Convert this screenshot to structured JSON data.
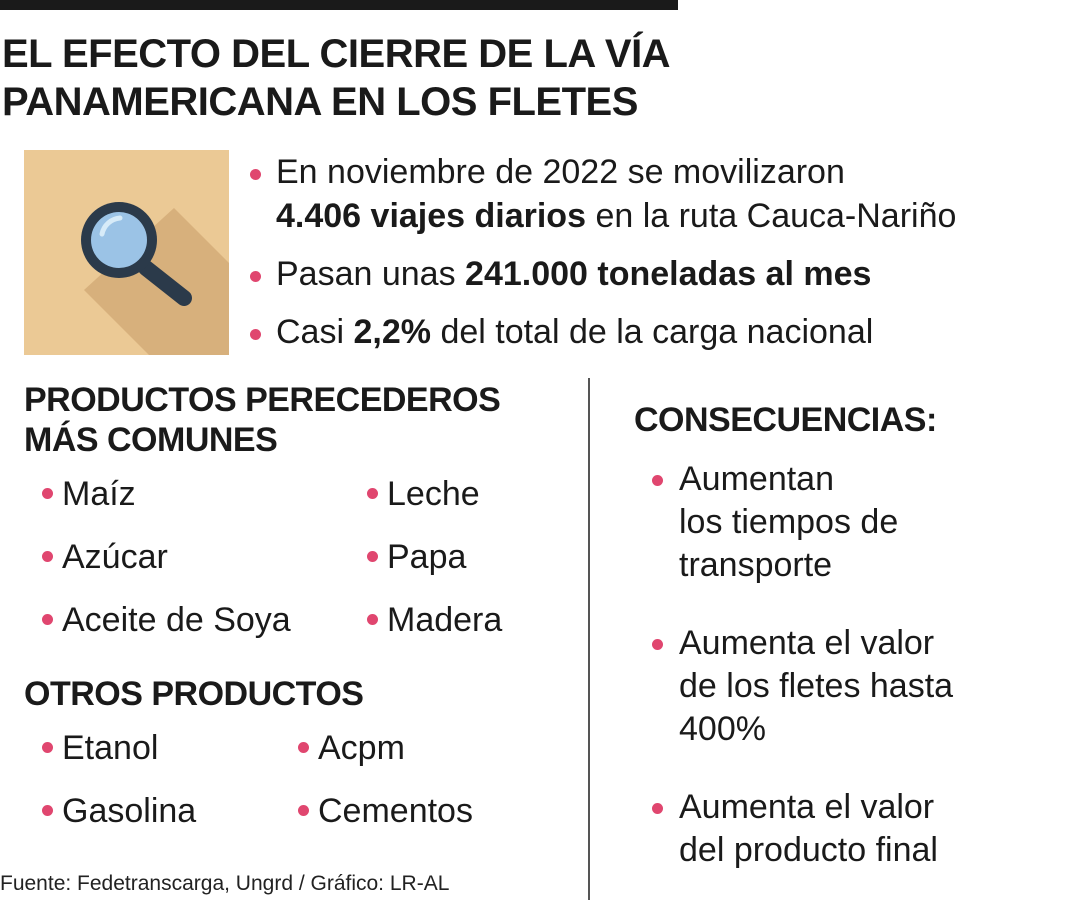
{
  "title": {
    "line1": "EL EFECTO DEL CIERRE DE LA VÍA",
    "line2": "PANAMERICANA EN LOS FLETES"
  },
  "icon": {
    "name": "magnifier-icon",
    "background": "#ebc995",
    "accent": "#e0466f"
  },
  "facts": {
    "f1_pre": "En noviembre de 2022 se movilizaron",
    "f1_bold": "4.406 viajes diarios",
    "f1_post": "en la ruta Cauca-Nariño",
    "f2_pre": "Pasan unas",
    "f2_bold": "241.000 toneladas al mes",
    "f3_pre": "Casi",
    "f3_bold": "2,2%",
    "f3_post": "del total de la carga nacional"
  },
  "perecederos": {
    "heading_line1": "PRODUCTOS PERECEDEROS",
    "heading_line2": "MÁS COMUNES",
    "items": [
      "Maíz",
      "Leche",
      "Azúcar",
      "Papa",
      "Aceite de Soya",
      "Madera"
    ]
  },
  "otros": {
    "heading": "OTROS PRODUCTOS",
    "items": [
      "Etanol",
      "Acpm",
      "Gasolina",
      "Cementos"
    ]
  },
  "consecuencias": {
    "heading": "CONSECUENCIAS:",
    "items": [
      [
        "Aumentan",
        "los tiempos de",
        "transporte"
      ],
      [
        "Aumenta el valor",
        "de los fletes hasta",
        "400%"
      ],
      [
        "Aumenta el valor",
        "del producto final"
      ]
    ]
  },
  "source": "Fuente: Fedetranscarga, Ungrd / Gráfico: LR-AL"
}
